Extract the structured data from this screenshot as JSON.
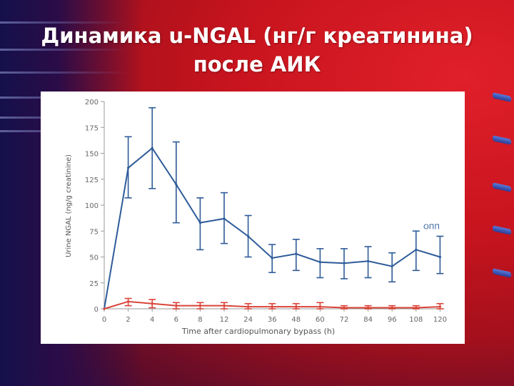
{
  "slide": {
    "title_line1": "Динамика u-NGAL (нг/г креатинина)",
    "title_line2": "после АИК"
  },
  "colors": {
    "series_opp": "#2e5b9a",
    "series_other": "#d9453a",
    "axis": "#9a9a9a"
  },
  "chart_data": {
    "type": "line",
    "title": "",
    "xlabel": "Time after cardiopulmonary bypass (h)",
    "ylabel": "Urine NGAL (ng/g creatinine)",
    "ylim": [
      0,
      200
    ],
    "y_ticks": [
      0,
      25,
      50,
      75,
      100,
      125,
      150,
      175,
      200
    ],
    "categories": [
      "0",
      "2",
      "4",
      "6",
      "8",
      "12",
      "24",
      "36",
      "48",
      "60",
      "72",
      "84",
      "96",
      "108",
      "120"
    ],
    "grid": false,
    "legend": "none",
    "series": [
      {
        "name": "ОПП",
        "color": "#2e5b9a",
        "values": [
          0,
          136,
          155,
          120,
          83,
          87,
          70,
          49,
          53,
          45,
          44,
          46,
          41,
          57,
          50
        ],
        "err_high": [
          0,
          166,
          194,
          161,
          107,
          112,
          90,
          62,
          67,
          58,
          58,
          60,
          54,
          75,
          70
        ],
        "err_low": [
          0,
          107,
          116,
          83,
          57,
          63,
          50,
          35,
          37,
          30,
          29,
          30,
          26,
          37,
          34
        ]
      },
      {
        "name": "",
        "color": "#d9453a",
        "values": [
          0,
          7,
          5,
          3,
          3,
          3,
          2,
          2,
          2,
          2,
          1,
          1,
          1,
          1,
          2
        ],
        "err_high": [
          0,
          10,
          9,
          6,
          6,
          6,
          5,
          5,
          5,
          6,
          3,
          3,
          3,
          3,
          5
        ],
        "err_low": [
          0,
          3,
          1,
          0,
          0,
          0,
          0,
          0,
          0,
          0,
          0,
          0,
          0,
          0,
          0
        ]
      }
    ]
  }
}
